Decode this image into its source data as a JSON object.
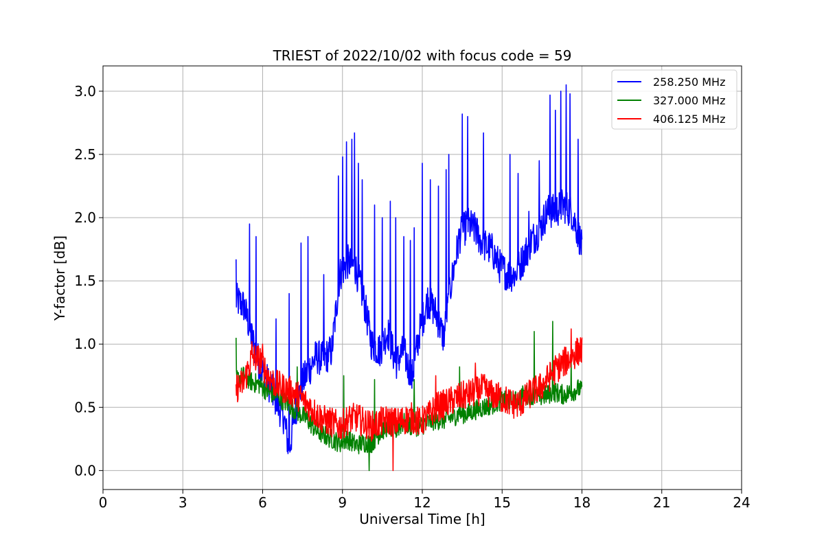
{
  "chart_data": {
    "type": "line",
    "title": "TRIEST of 2022/10/02 with focus code = 59",
    "xlabel": "Universal Time [h]",
    "ylabel": "Y-factor [dB]",
    "xlim": [
      0,
      24
    ],
    "ylim": [
      -0.15,
      3.2
    ],
    "xticks": [
      0,
      3,
      6,
      9,
      12,
      15,
      18,
      21,
      24
    ],
    "xtick_labels": [
      "0",
      "3",
      "6",
      "9",
      "12",
      "15",
      "18",
      "21",
      "24"
    ],
    "yticks": [
      0.0,
      0.5,
      1.0,
      1.5,
      2.0,
      2.5,
      3.0
    ],
    "ytick_labels": [
      "0.0",
      "0.5",
      "1.0",
      "1.5",
      "2.0",
      "2.5",
      "3.0"
    ],
    "grid": true,
    "legend_position": "top-right",
    "series": [
      {
        "name": "258.250 MHz",
        "color": "#0000ff",
        "x": [
          5.0,
          5.3,
          5.6,
          5.9,
          6.2,
          6.5,
          6.8,
          7.0,
          7.2,
          7.5,
          7.8,
          8.0,
          8.3,
          8.6,
          8.9,
          9.2,
          9.5,
          9.8,
          10.1,
          10.4,
          10.7,
          11.0,
          11.3,
          11.6,
          11.9,
          12.2,
          12.5,
          12.8,
          13.1,
          13.4,
          13.7,
          14.0,
          14.3,
          14.6,
          14.9,
          15.2,
          15.5,
          15.8,
          16.1,
          16.4,
          16.7,
          17.0,
          17.3,
          17.6,
          17.9,
          18.0
        ],
        "y": [
          1.35,
          1.3,
          1.05,
          0.82,
          0.7,
          0.55,
          0.42,
          0.15,
          0.45,
          0.7,
          0.82,
          0.9,
          0.88,
          0.95,
          1.55,
          1.65,
          1.6,
          1.35,
          1.0,
          0.95,
          1.1,
          0.85,
          0.95,
          0.72,
          1.1,
          1.35,
          1.25,
          1.05,
          1.5,
          1.85,
          1.95,
          1.9,
          1.78,
          1.75,
          1.62,
          1.55,
          1.55,
          1.68,
          1.82,
          1.9,
          2.05,
          2.05,
          2.1,
          2.05,
          1.85,
          1.75
        ],
        "spikes": [
          {
            "x": 5.0,
            "y": 1.67
          },
          {
            "x": 5.5,
            "y": 1.95
          },
          {
            "x": 5.75,
            "y": 1.85
          },
          {
            "x": 6.5,
            "y": 1.2
          },
          {
            "x": 7.0,
            "y": 1.4
          },
          {
            "x": 7.45,
            "y": 1.8
          },
          {
            "x": 7.7,
            "y": 1.85
          },
          {
            "x": 8.3,
            "y": 1.55
          },
          {
            "x": 8.85,
            "y": 2.33
          },
          {
            "x": 9.0,
            "y": 2.48
          },
          {
            "x": 9.15,
            "y": 2.6
          },
          {
            "x": 9.35,
            "y": 2.62
          },
          {
            "x": 9.45,
            "y": 2.67
          },
          {
            "x": 9.6,
            "y": 2.43
          },
          {
            "x": 9.75,
            "y": 2.3
          },
          {
            "x": 10.2,
            "y": 2.1
          },
          {
            "x": 10.5,
            "y": 2.0
          },
          {
            "x": 10.8,
            "y": 2.13
          },
          {
            "x": 11.0,
            "y": 2.0
          },
          {
            "x": 11.3,
            "y": 1.85
          },
          {
            "x": 11.55,
            "y": 1.82
          },
          {
            "x": 11.7,
            "y": 1.92
          },
          {
            "x": 12.0,
            "y": 2.43
          },
          {
            "x": 12.3,
            "y": 2.3
          },
          {
            "x": 12.6,
            "y": 2.25
          },
          {
            "x": 12.9,
            "y": 2.38
          },
          {
            "x": 13.0,
            "y": 2.5
          },
          {
            "x": 13.5,
            "y": 2.82
          },
          {
            "x": 13.7,
            "y": 2.8
          },
          {
            "x": 14.0,
            "y": 2.0
          },
          {
            "x": 14.3,
            "y": 2.67
          },
          {
            "x": 15.3,
            "y": 2.5
          },
          {
            "x": 15.6,
            "y": 2.35
          },
          {
            "x": 16.0,
            "y": 2.05
          },
          {
            "x": 16.4,
            "y": 2.45
          },
          {
            "x": 16.8,
            "y": 2.97
          },
          {
            "x": 17.0,
            "y": 2.85
          },
          {
            "x": 17.2,
            "y": 3.0
          },
          {
            "x": 17.4,
            "y": 3.05
          },
          {
            "x": 17.55,
            "y": 2.98
          },
          {
            "x": 17.85,
            "y": 2.62
          }
        ]
      },
      {
        "name": "327.000 MHz",
        "color": "#008000",
        "x": [
          5.0,
          5.3,
          5.6,
          5.9,
          6.2,
          6.5,
          6.8,
          7.1,
          7.4,
          7.7,
          8.0,
          8.3,
          8.6,
          8.9,
          9.2,
          9.5,
          9.8,
          10.1,
          10.4,
          10.7,
          11.0,
          11.3,
          11.6,
          11.9,
          12.2,
          12.5,
          12.8,
          13.1,
          13.4,
          13.7,
          14.0,
          14.3,
          14.6,
          14.9,
          15.2,
          15.5,
          15.8,
          16.1,
          16.4,
          16.7,
          17.0,
          17.3,
          17.6,
          17.9,
          18.0
        ],
        "y": [
          0.72,
          0.75,
          0.7,
          0.68,
          0.62,
          0.6,
          0.55,
          0.5,
          0.45,
          0.4,
          0.32,
          0.28,
          0.25,
          0.22,
          0.25,
          0.2,
          0.22,
          0.22,
          0.3,
          0.35,
          0.32,
          0.38,
          0.35,
          0.35,
          0.38,
          0.4,
          0.4,
          0.42,
          0.45,
          0.45,
          0.48,
          0.5,
          0.52,
          0.55,
          0.55,
          0.55,
          0.6,
          0.6,
          0.58,
          0.6,
          0.62,
          0.6,
          0.62,
          0.65,
          0.62
        ],
        "spikes": [
          {
            "x": 5.0,
            "y": 1.05
          },
          {
            "x": 7.3,
            "y": 0.82
          },
          {
            "x": 9.05,
            "y": 0.75
          },
          {
            "x": 10.2,
            "y": 0.72
          },
          {
            "x": 11.7,
            "y": 0.72
          },
          {
            "x": 13.4,
            "y": 0.82
          },
          {
            "x": 16.2,
            "y": 1.1
          },
          {
            "x": 16.9,
            "y": 1.18
          },
          {
            "x": 17.6,
            "y": 0.88
          },
          {
            "x": 10.0,
            "y": 0.0
          }
        ]
      },
      {
        "name": "406.125 MHz",
        "color": "#ff0000",
        "x": [
          5.0,
          5.3,
          5.6,
          5.9,
          6.2,
          6.5,
          6.8,
          7.1,
          7.4,
          7.7,
          8.0,
          8.3,
          8.6,
          8.9,
          9.2,
          9.5,
          9.8,
          10.1,
          10.4,
          10.7,
          11.0,
          11.3,
          11.6,
          11.9,
          12.2,
          12.5,
          12.8,
          13.1,
          13.4,
          13.7,
          14.0,
          14.3,
          14.6,
          14.9,
          15.2,
          15.5,
          15.8,
          16.1,
          16.4,
          16.7,
          17.0,
          17.3,
          17.6,
          17.9,
          18.0
        ],
        "y": [
          0.65,
          0.7,
          0.9,
          0.88,
          0.75,
          0.68,
          0.65,
          0.62,
          0.58,
          0.52,
          0.45,
          0.4,
          0.38,
          0.35,
          0.4,
          0.42,
          0.38,
          0.35,
          0.38,
          0.4,
          0.38,
          0.4,
          0.42,
          0.38,
          0.42,
          0.5,
          0.52,
          0.55,
          0.58,
          0.6,
          0.62,
          0.65,
          0.6,
          0.58,
          0.55,
          0.52,
          0.55,
          0.62,
          0.65,
          0.72,
          0.8,
          0.85,
          0.9,
          0.95,
          0.95
        ],
        "spikes": [
          {
            "x": 5.6,
            "y": 1.02
          },
          {
            "x": 6.0,
            "y": 1.0
          },
          {
            "x": 10.9,
            "y": 0.0
          },
          {
            "x": 12.5,
            "y": 0.75
          },
          {
            "x": 14.0,
            "y": 0.85
          },
          {
            "x": 17.6,
            "y": 1.12
          }
        ]
      }
    ]
  }
}
